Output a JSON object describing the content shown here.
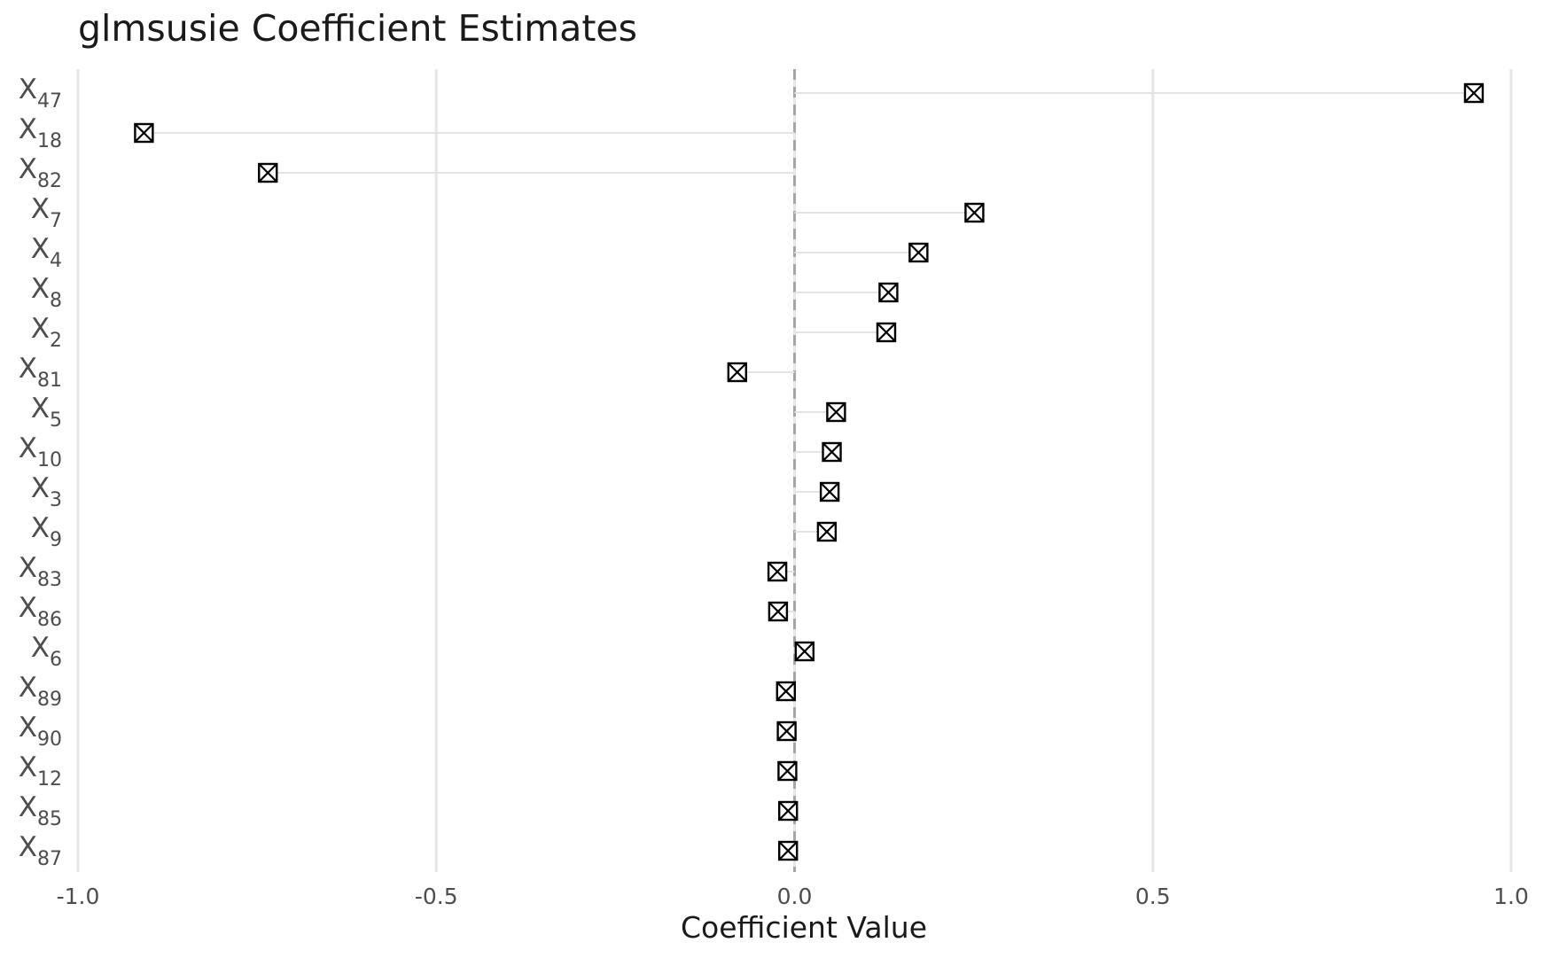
{
  "chart_data": {
    "type": "scatter",
    "title": "glmsusie Coefficient Estimates",
    "xlabel": "Coefficient Value",
    "ylabel": "",
    "xlim": [
      -1.0,
      1.0
    ],
    "x_ticks": [
      "-1.0",
      "-0.5",
      "0.0",
      "0.5",
      "1.0"
    ],
    "x_tick_values": [
      -1.0,
      -0.5,
      0.0,
      0.5,
      1.0
    ],
    "reference_line": {
      "x": 0.0,
      "style": "dashed",
      "color": "#a6a6a6"
    },
    "grid": {
      "major_x": true,
      "major_y": false
    },
    "marker": "boxed-x",
    "categories": [
      {
        "base": "X",
        "sub": "47",
        "value": 0.948
      },
      {
        "base": "X",
        "sub": "18",
        "value": -0.908
      },
      {
        "base": "X",
        "sub": "82",
        "value": -0.735
      },
      {
        "base": "X",
        "sub": "7",
        "value": 0.251
      },
      {
        "base": "X",
        "sub": "4",
        "value": 0.173
      },
      {
        "base": "X",
        "sub": "8",
        "value": 0.131
      },
      {
        "base": "X",
        "sub": "2",
        "value": 0.128
      },
      {
        "base": "X",
        "sub": "81",
        "value": -0.08
      },
      {
        "base": "X",
        "sub": "5",
        "value": 0.058
      },
      {
        "base": "X",
        "sub": "10",
        "value": 0.052
      },
      {
        "base": "X",
        "sub": "3",
        "value": 0.049
      },
      {
        "base": "X",
        "sub": "9",
        "value": 0.045
      },
      {
        "base": "X",
        "sub": "83",
        "value": -0.024
      },
      {
        "base": "X",
        "sub": "86",
        "value": -0.023
      },
      {
        "base": "X",
        "sub": "6",
        "value": 0.014
      },
      {
        "base": "X",
        "sub": "89",
        "value": -0.012
      },
      {
        "base": "X",
        "sub": "90",
        "value": -0.011
      },
      {
        "base": "X",
        "sub": "12",
        "value": -0.01
      },
      {
        "base": "X",
        "sub": "85",
        "value": -0.009
      },
      {
        "base": "X",
        "sub": "87",
        "value": -0.009
      }
    ],
    "colors": {
      "grid": "#e6e6e6",
      "segment": "#e3e3e3",
      "marker": "#000000",
      "ref": "#a6a6a6"
    }
  }
}
